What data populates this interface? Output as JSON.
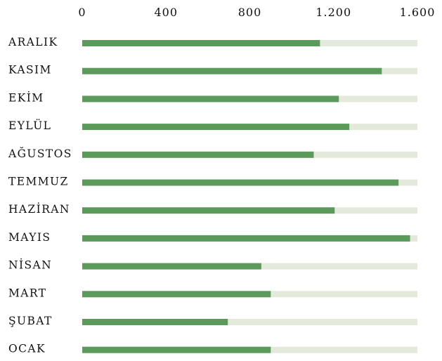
{
  "chart_data": {
    "type": "bar",
    "orientation": "horizontal",
    "categories": [
      "ARALIK",
      "KASIM",
      "EKİM",
      "EYLÜL",
      "AĞUSTOS",
      "TEMMUZ",
      "HAZİRAN",
      "MAYIS",
      "NİSAN",
      "MART",
      "ŞUBAT",
      "OCAK"
    ],
    "values": [
      1135,
      1430,
      1225,
      1275,
      1105,
      1510,
      1205,
      1565,
      855,
      900,
      695,
      900
    ],
    "xlim": [
      0,
      1600
    ],
    "x_ticks": [
      0,
      400,
      800,
      1200,
      1600
    ],
    "x_tick_labels": [
      "0",
      "400",
      "800",
      "1.200",
      "1.600"
    ],
    "track_max": 1600,
    "axis_position": "top",
    "grid": false,
    "legend": "none",
    "title": "",
    "xlabel": "",
    "ylabel": "",
    "colors": {
      "bar": "#5c9a5c",
      "track": "#e4eadb",
      "text": "#111111"
    }
  }
}
